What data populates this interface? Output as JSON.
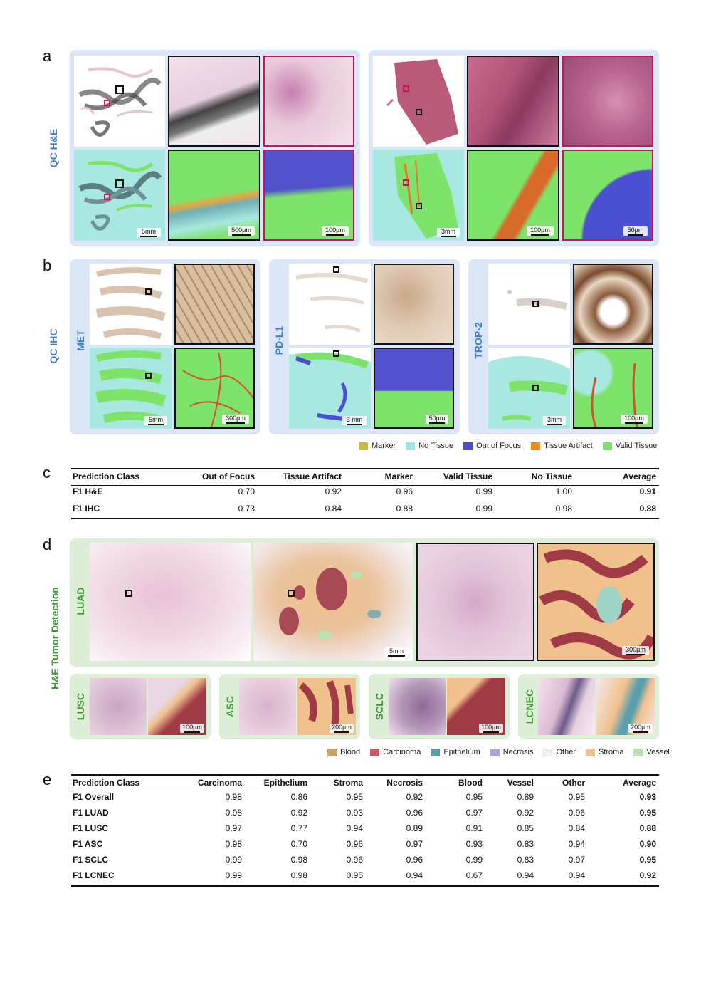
{
  "panels": {
    "a": "a",
    "b": "b",
    "c": "c",
    "d": "d",
    "e": "e"
  },
  "section_labels": {
    "qc_he": "QC H&E",
    "qc_ihc": "QC IHC",
    "tumor_detection": "H&E Tumor Detection"
  },
  "ihc_markers": [
    "MET",
    "PD-L1",
    "TROP-2"
  ],
  "subtypes": [
    "LUAD",
    "LUSC",
    "ASC",
    "SCLC",
    "LCNEC"
  ],
  "scale_bars": {
    "a_left_overview": "5mm",
    "a_left_mid": "500µm",
    "a_left_zoom": "100µm",
    "a_right_overview": "3mm",
    "a_right_mid": "100µm",
    "a_right_zoom": "50µm",
    "b_met_overview": "5mm",
    "b_met_zoom": "300µm",
    "b_pdl1_overview": "3 mm",
    "b_pdl1_zoom": "50µm",
    "b_trop2_overview": "3mm",
    "b_trop2_zoom": "100µm",
    "d_luad_overview": "5mm",
    "d_luad_zoom": "300µm",
    "d_lusc": "100µm",
    "d_asc": "200µm",
    "d_sclc": "100µm",
    "d_lcnec": "200µm"
  },
  "qc_legend": [
    {
      "label": "Marker",
      "color": "#c9b84a"
    },
    {
      "label": "No Tissue",
      "color": "#9ee6df"
    },
    {
      "label": "Out of Focus",
      "color": "#4b4fd1"
    },
    {
      "label": "Tissue Artifact",
      "color": "#f08a1c"
    },
    {
      "label": "Valid Tissue",
      "color": "#7ee36a"
    }
  ],
  "tumor_legend": [
    {
      "label": "Blood",
      "color": "#c8a66a"
    },
    {
      "label": "Carcinoma",
      "color": "#c85866"
    },
    {
      "label": "Epithelium",
      "color": "#5b9fae"
    },
    {
      "label": "Necrosis",
      "color": "#a9a6dc"
    },
    {
      "label": "Other",
      "color": "#f6eef4"
    },
    {
      "label": "Stroma",
      "color": "#f0c18c"
    },
    {
      "label": "Vessel",
      "color": "#b6e3b1"
    }
  ],
  "table_c": {
    "header": [
      "Prediction Class",
      "Out of Focus",
      "Tissue Artifact",
      "Marker",
      "Valid Tissue",
      "No Tissue",
      "Average"
    ],
    "rows": [
      [
        "F1 H&E",
        "0.70",
        "0.92",
        "0.96",
        "0.99",
        "1.00",
        "0.91"
      ],
      [
        "F1 IHC",
        "0.73",
        "0.84",
        "0.88",
        "0.99",
        "0.98",
        "0.88"
      ]
    ]
  },
  "table_e": {
    "header": [
      "Prediction Class",
      "Carcinoma",
      "Epithelium",
      "Stroma",
      "Necrosis",
      "Blood",
      "Vessel",
      "Other",
      "Average"
    ],
    "rows": [
      [
        "F1 Overall",
        "0.98",
        "0.86",
        "0.95",
        "0.92",
        "0.95",
        "0.89",
        "0.95",
        "0.93"
      ],
      [
        "F1 LUAD",
        "0.98",
        "0.92",
        "0.93",
        "0.96",
        "0.97",
        "0.92",
        "0.96",
        "0.95"
      ],
      [
        "F1 LUSC",
        "0.97",
        "0.77",
        "0.94",
        "0.89",
        "0.91",
        "0.85",
        "0.84",
        "0.88"
      ],
      [
        "F1 ASC",
        "0.98",
        "0.70",
        "0.96",
        "0.97",
        "0.93",
        "0.83",
        "0.94",
        "0.90"
      ],
      [
        "F1 SCLC",
        "0.99",
        "0.98",
        "0.96",
        "0.96",
        "0.99",
        "0.83",
        "0.97",
        "0.95"
      ],
      [
        "F1 LCNEC",
        "0.99",
        "0.98",
        "0.95",
        "0.94",
        "0.67",
        "0.94",
        "0.94",
        "0.92"
      ]
    ]
  }
}
